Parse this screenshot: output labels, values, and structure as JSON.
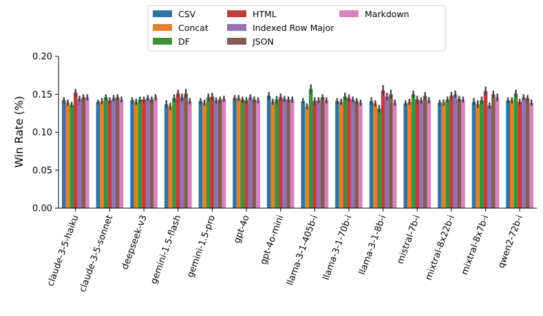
{
  "chart_data": {
    "type": "bar",
    "title": "",
    "xlabel": "",
    "ylabel": "Win Rate (%)",
    "ylim": [
      0,
      0.2
    ],
    "yticks": [
      "0.00",
      "0.05",
      "0.10",
      "0.15",
      "0.20"
    ],
    "grid": false,
    "legend_position": "top",
    "categories": [
      "claude-3-5-haiku",
      "claude-3-5-sonnet",
      "deepseek-v3",
      "gemini-1.5-flash",
      "gemini-1.5-pro",
      "gpt-4o",
      "gpt-4o-mini",
      "llama-3-1-405b-i",
      "llama-3-1-70b-i",
      "llama-3-1-8b-i",
      "mistral-7b-i",
      "mixtral-8x22b-i",
      "mixtral-8x7b-i",
      "qwen2-72b-i"
    ],
    "series": [
      {
        "name": "CSV",
        "color": "#3274a1",
        "values": [
          0.142,
          0.14,
          0.142,
          0.137,
          0.141,
          0.145,
          0.148,
          0.141,
          0.141,
          0.141,
          0.138,
          0.139,
          0.14,
          0.142
        ],
        "err": [
          0.004,
          0.003,
          0.004,
          0.005,
          0.004,
          0.004,
          0.005,
          0.004,
          0.004,
          0.005,
          0.004,
          0.004,
          0.005,
          0.004
        ]
      },
      {
        "name": "Concat",
        "color": "#e1812c",
        "values": [
          0.139,
          0.141,
          0.14,
          0.134,
          0.139,
          0.145,
          0.14,
          0.134,
          0.14,
          0.138,
          0.14,
          0.139,
          0.137,
          0.142
        ],
        "err": [
          0.004,
          0.004,
          0.004,
          0.005,
          0.004,
          0.004,
          0.004,
          0.004,
          0.004,
          0.004,
          0.004,
          0.004,
          0.005,
          0.004
        ]
      },
      {
        "name": "DF",
        "color": "#3a923a",
        "values": [
          0.136,
          0.146,
          0.143,
          0.145,
          0.146,
          0.143,
          0.143,
          0.157,
          0.147,
          0.131,
          0.15,
          0.143,
          0.142,
          0.151
        ],
        "err": [
          0.004,
          0.004,
          0.004,
          0.005,
          0.005,
          0.004,
          0.005,
          0.006,
          0.005,
          0.005,
          0.005,
          0.004,
          0.005,
          0.005
        ]
      },
      {
        "name": "HTML",
        "color": "#c03d3e",
        "values": [
          0.152,
          0.142,
          0.143,
          0.151,
          0.147,
          0.142,
          0.146,
          0.141,
          0.145,
          0.155,
          0.143,
          0.148,
          0.154,
          0.14
        ],
        "err": [
          0.005,
          0.004,
          0.004,
          0.005,
          0.005,
          0.004,
          0.005,
          0.005,
          0.005,
          0.007,
          0.005,
          0.005,
          0.006,
          0.004
        ]
      },
      {
        "name": "Indexed Row Major",
        "color": "#9372b2",
        "values": [
          0.144,
          0.145,
          0.145,
          0.146,
          0.142,
          0.146,
          0.144,
          0.142,
          0.143,
          0.147,
          0.142,
          0.15,
          0.135,
          0.146
        ],
        "err": [
          0.004,
          0.004,
          0.004,
          0.005,
          0.004,
          0.004,
          0.004,
          0.004,
          0.004,
          0.005,
          0.004,
          0.005,
          0.004,
          0.004
        ]
      },
      {
        "name": "JSON",
        "color": "#845b53",
        "values": [
          0.146,
          0.146,
          0.143,
          0.151,
          0.143,
          0.143,
          0.143,
          0.146,
          0.141,
          0.15,
          0.148,
          0.144,
          0.15,
          0.145
        ],
        "err": [
          0.004,
          0.004,
          0.004,
          0.006,
          0.004,
          0.004,
          0.004,
          0.004,
          0.004,
          0.006,
          0.005,
          0.004,
          0.005,
          0.004
        ]
      },
      {
        "name": "Markdown",
        "color": "#d684bd",
        "values": [
          0.146,
          0.143,
          0.146,
          0.141,
          0.144,
          0.142,
          0.143,
          0.142,
          0.139,
          0.139,
          0.142,
          0.143,
          0.146,
          0.139
        ],
        "err": [
          0.004,
          0.004,
          0.004,
          0.004,
          0.004,
          0.004,
          0.004,
          0.004,
          0.004,
          0.004,
          0.004,
          0.004,
          0.005,
          0.004
        ]
      }
    ]
  }
}
